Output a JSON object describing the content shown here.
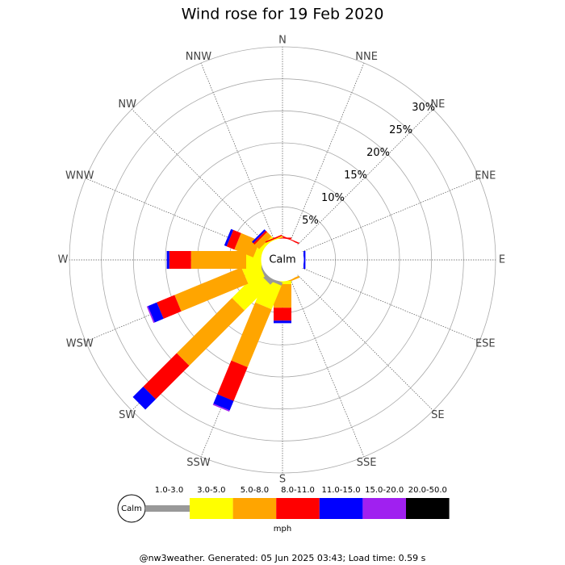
{
  "chart_data": {
    "type": "windrose",
    "title": "Wind rose for 19 Feb 2020",
    "directions": [
      "N",
      "NNE",
      "NE",
      "ENE",
      "E",
      "ESE",
      "SE",
      "SSE",
      "S",
      "SSW",
      "SW",
      "WSW",
      "W",
      "WNW",
      "NW",
      "NNW"
    ],
    "calm_label": "Calm",
    "rlim": [
      0,
      30
    ],
    "rticks": [
      {
        "value": 5,
        "label": "5%"
      },
      {
        "value": 10,
        "label": "10%"
      },
      {
        "value": 15,
        "label": "15%"
      },
      {
        "value": 20,
        "label": "20%"
      },
      {
        "value": 25,
        "label": "25%"
      },
      {
        "value": 30,
        "label": "30%"
      }
    ],
    "series": [
      {
        "name": "1.0-3.0",
        "color": "#999999",
        "values": [
          0,
          0,
          0,
          0,
          0,
          0,
          0,
          0,
          0,
          0.5,
          0.8,
          0.3,
          0,
          0,
          0,
          0
        ]
      },
      {
        "name": "3.0-5.0",
        "color": "#ffff00",
        "values": [
          0,
          0,
          0,
          0,
          0,
          0,
          0,
          0,
          0.5,
          4.0,
          5.7,
          2.8,
          2.4,
          1.1,
          0.5,
          0.2
        ]
      },
      {
        "name": "5.0-8.0",
        "color": "#ffa500",
        "values": [
          0,
          0,
          0,
          0,
          0,
          0,
          0,
          0.3,
          3.7,
          9.8,
          12.2,
          11.3,
          8.6,
          3.2,
          1.0,
          0
        ]
      },
      {
        "name": "8.0-11.0",
        "color": "#ff0000",
        "values": [
          0.2,
          0.2,
          0,
          0,
          0,
          0,
          0,
          0,
          2.0,
          5.7,
          7.4,
          3.0,
          3.4,
          1.3,
          0.3,
          0.2
        ]
      },
      {
        "name": "11.0-15.0",
        "color": "#0000ff",
        "values": [
          0,
          0,
          0,
          0,
          0.3,
          0,
          0,
          0,
          0.4,
          1.6,
          2.3,
          1.5,
          0.4,
          0.4,
          0.3,
          0
        ]
      },
      {
        "name": "15.0-20.0",
        "color": "#a020f0",
        "values": [
          0,
          0,
          0,
          0,
          0,
          0,
          0,
          0,
          0,
          0.2,
          0,
          0.2,
          0,
          0,
          0,
          0
        ]
      },
      {
        "name": "20.0-50.0",
        "color": "#000000",
        "values": [
          0,
          0,
          0,
          0,
          0,
          0,
          0,
          0,
          0,
          0,
          0,
          0,
          0,
          0,
          0,
          0
        ]
      }
    ],
    "legend_unit": "mph",
    "footer": "@nw3weather. Generated: 05 Jun 2025 03:43; Load time: 0.59 s"
  }
}
